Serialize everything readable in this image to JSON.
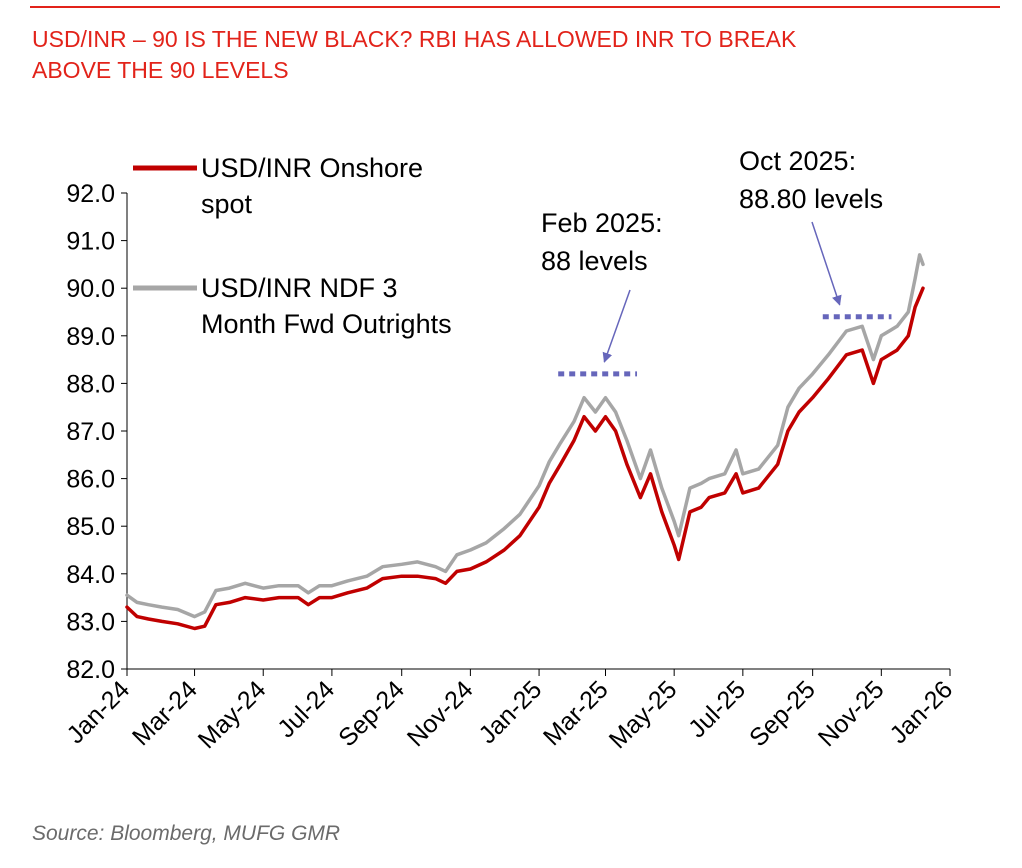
{
  "header": {
    "title_line1": "USD/INR – 90 IS THE NEW BLACK? RBI HAS ALLOWED INR TO BREAK",
    "title_line2": "ABOVE THE 90 LEVELS",
    "accent_color": "#e2231a"
  },
  "footer": {
    "source": "Source: Bloomberg, MUFG GMR"
  },
  "chart_data": {
    "type": "line",
    "ylim": [
      82.0,
      92.0
    ],
    "y_ticks": [
      "82.0",
      "83.0",
      "84.0",
      "85.0",
      "86.0",
      "87.0",
      "88.0",
      "89.0",
      "90.0",
      "91.0",
      "92.0"
    ],
    "x_range": [
      "2024-01-01",
      "2026-01-01"
    ],
    "x_ticks": [
      {
        "date": "2024-01-01",
        "label": "Jan-24"
      },
      {
        "date": "2024-03-01",
        "label": "Mar-24"
      },
      {
        "date": "2024-05-01",
        "label": "May-24"
      },
      {
        "date": "2024-07-01",
        "label": "Jul-24"
      },
      {
        "date": "2024-09-01",
        "label": "Sep-24"
      },
      {
        "date": "2024-11-01",
        "label": "Nov-24"
      },
      {
        "date": "2025-01-01",
        "label": "Jan-25"
      },
      {
        "date": "2025-03-01",
        "label": "Mar-25"
      },
      {
        "date": "2025-05-01",
        "label": "May-25"
      },
      {
        "date": "2025-07-01",
        "label": "Jul-25"
      },
      {
        "date": "2025-09-01",
        "label": "Sep-25"
      },
      {
        "date": "2025-11-01",
        "label": "Nov-25"
      },
      {
        "date": "2026-01-01",
        "label": "Jan-26"
      }
    ],
    "legend": {
      "placement": "top-left"
    },
    "series": [
      {
        "name_line1": "USD/INR Onshore",
        "name_line2": "spot",
        "color": "#c00000",
        "points": [
          [
            "2024-01-01",
            83.3
          ],
          [
            "2024-01-10",
            83.1
          ],
          [
            "2024-01-20",
            83.05
          ],
          [
            "2024-02-01",
            83.0
          ],
          [
            "2024-02-15",
            82.95
          ],
          [
            "2024-03-01",
            82.85
          ],
          [
            "2024-03-10",
            82.9
          ],
          [
            "2024-03-20",
            83.35
          ],
          [
            "2024-04-01",
            83.4
          ],
          [
            "2024-04-15",
            83.5
          ],
          [
            "2024-05-01",
            83.45
          ],
          [
            "2024-05-15",
            83.5
          ],
          [
            "2024-06-01",
            83.5
          ],
          [
            "2024-06-10",
            83.35
          ],
          [
            "2024-06-20",
            83.5
          ],
          [
            "2024-07-01",
            83.5
          ],
          [
            "2024-07-15",
            83.6
          ],
          [
            "2024-08-01",
            83.7
          ],
          [
            "2024-08-15",
            83.9
          ],
          [
            "2024-09-01",
            83.95
          ],
          [
            "2024-09-15",
            83.95
          ],
          [
            "2024-10-01",
            83.9
          ],
          [
            "2024-10-10",
            83.8
          ],
          [
            "2024-10-20",
            84.05
          ],
          [
            "2024-11-01",
            84.1
          ],
          [
            "2024-11-15",
            84.25
          ],
          [
            "2024-12-01",
            84.5
          ],
          [
            "2024-12-15",
            84.8
          ],
          [
            "2025-01-01",
            85.4
          ],
          [
            "2025-01-10",
            85.9
          ],
          [
            "2025-01-20",
            86.3
          ],
          [
            "2025-02-01",
            86.8
          ],
          [
            "2025-02-10",
            87.3
          ],
          [
            "2025-02-20",
            87.0
          ],
          [
            "2025-03-01",
            87.3
          ],
          [
            "2025-03-10",
            87.0
          ],
          [
            "2025-03-20",
            86.3
          ],
          [
            "2025-04-01",
            85.6
          ],
          [
            "2025-04-10",
            86.1
          ],
          [
            "2025-04-20",
            85.3
          ],
          [
            "2025-05-01",
            84.6
          ],
          [
            "2025-05-05",
            84.3
          ],
          [
            "2025-05-15",
            85.3
          ],
          [
            "2025-05-25",
            85.4
          ],
          [
            "2025-06-01",
            85.6
          ],
          [
            "2025-06-15",
            85.7
          ],
          [
            "2025-06-25",
            86.1
          ],
          [
            "2025-07-01",
            85.7
          ],
          [
            "2025-07-15",
            85.8
          ],
          [
            "2025-08-01",
            86.3
          ],
          [
            "2025-08-10",
            87.0
          ],
          [
            "2025-08-20",
            87.4
          ],
          [
            "2025-09-01",
            87.7
          ],
          [
            "2025-09-15",
            88.1
          ],
          [
            "2025-10-01",
            88.6
          ],
          [
            "2025-10-15",
            88.7
          ],
          [
            "2025-10-25",
            88.0
          ],
          [
            "2025-11-01",
            88.5
          ],
          [
            "2025-11-15",
            88.7
          ],
          [
            "2025-11-25",
            89.0
          ],
          [
            "2025-12-01",
            89.6
          ],
          [
            "2025-12-08",
            90.0
          ]
        ]
      },
      {
        "name_line1": "USD/INR NDF 3",
        "name_line2": "Month Fwd Outrights",
        "color": "#a6a6a6",
        "points": [
          [
            "2024-01-01",
            83.55
          ],
          [
            "2024-01-10",
            83.4
          ],
          [
            "2024-01-20",
            83.35
          ],
          [
            "2024-02-01",
            83.3
          ],
          [
            "2024-02-15",
            83.25
          ],
          [
            "2024-03-01",
            83.1
          ],
          [
            "2024-03-10",
            83.2
          ],
          [
            "2024-03-20",
            83.65
          ],
          [
            "2024-04-01",
            83.7
          ],
          [
            "2024-04-15",
            83.8
          ],
          [
            "2024-05-01",
            83.7
          ],
          [
            "2024-05-15",
            83.75
          ],
          [
            "2024-06-01",
            83.75
          ],
          [
            "2024-06-10",
            83.6
          ],
          [
            "2024-06-20",
            83.75
          ],
          [
            "2024-07-01",
            83.75
          ],
          [
            "2024-07-15",
            83.85
          ],
          [
            "2024-08-01",
            83.95
          ],
          [
            "2024-08-15",
            84.15
          ],
          [
            "2024-09-01",
            84.2
          ],
          [
            "2024-09-15",
            84.25
          ],
          [
            "2024-10-01",
            84.15
          ],
          [
            "2024-10-10",
            84.05
          ],
          [
            "2024-10-20",
            84.4
          ],
          [
            "2024-11-01",
            84.5
          ],
          [
            "2024-11-15",
            84.65
          ],
          [
            "2024-12-01",
            84.95
          ],
          [
            "2024-12-15",
            85.25
          ],
          [
            "2025-01-01",
            85.85
          ],
          [
            "2025-01-10",
            86.35
          ],
          [
            "2025-01-20",
            86.75
          ],
          [
            "2025-02-01",
            87.2
          ],
          [
            "2025-02-10",
            87.7
          ],
          [
            "2025-02-20",
            87.4
          ],
          [
            "2025-03-01",
            87.7
          ],
          [
            "2025-03-10",
            87.4
          ],
          [
            "2025-03-20",
            86.8
          ],
          [
            "2025-04-01",
            86.0
          ],
          [
            "2025-04-10",
            86.6
          ],
          [
            "2025-04-20",
            85.8
          ],
          [
            "2025-05-01",
            85.1
          ],
          [
            "2025-05-05",
            84.8
          ],
          [
            "2025-05-15",
            85.8
          ],
          [
            "2025-05-25",
            85.9
          ],
          [
            "2025-06-01",
            86.0
          ],
          [
            "2025-06-15",
            86.1
          ],
          [
            "2025-06-25",
            86.6
          ],
          [
            "2025-07-01",
            86.1
          ],
          [
            "2025-07-15",
            86.2
          ],
          [
            "2025-08-01",
            86.7
          ],
          [
            "2025-08-10",
            87.5
          ],
          [
            "2025-08-20",
            87.9
          ],
          [
            "2025-09-01",
            88.2
          ],
          [
            "2025-09-15",
            88.6
          ],
          [
            "2025-10-01",
            89.1
          ],
          [
            "2025-10-15",
            89.2
          ],
          [
            "2025-10-25",
            88.5
          ],
          [
            "2025-11-01",
            89.0
          ],
          [
            "2025-11-15",
            89.2
          ],
          [
            "2025-11-25",
            89.5
          ],
          [
            "2025-12-01",
            90.2
          ],
          [
            "2025-12-05",
            90.7
          ],
          [
            "2025-12-08",
            90.5
          ]
        ]
      }
    ],
    "annotations": [
      {
        "line1": "Feb 2025:",
        "line2": "88 levels",
        "level": 88.2,
        "level_from": "2025-01-18",
        "level_to": "2025-03-29",
        "arrow_to_date": "2025-02-28"
      },
      {
        "line1": "Oct 2025:",
        "line2": "88.80 levels",
        "level": 89.4,
        "level_from": "2025-09-10",
        "level_to": "2025-11-10",
        "arrow_to_date": "2025-09-25"
      }
    ],
    "annotation_color": "#6666bb",
    "grid": false
  }
}
